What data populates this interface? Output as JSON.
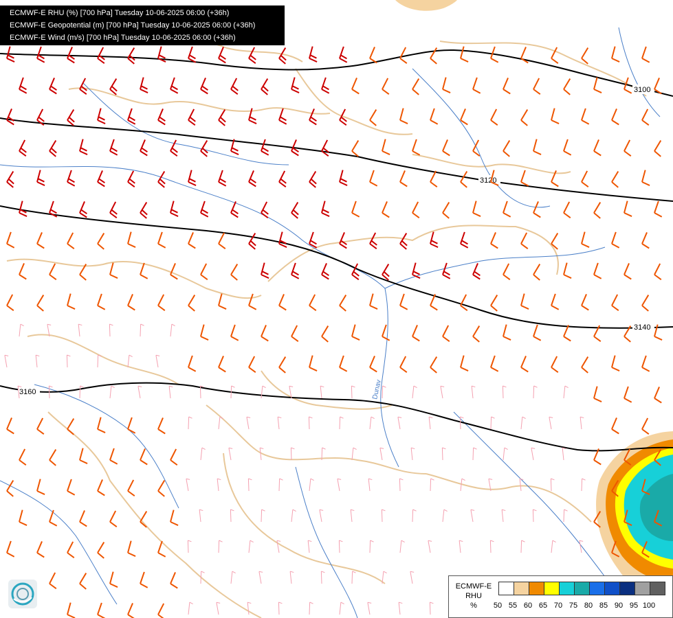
{
  "header": {
    "lines": [
      "ECMWF-E RHU (%) [700 hPa] Tuesday 10-06-2025 06:00 (+36h)",
      "ECMWF-E Geopotential (m) [700 hPa] Tuesday 10-06-2025 06:00 (+36h)",
      "ECMWF-E Wind (m/s) [700 hPa] Tuesday 10-06-2025 06:00 (+36h)"
    ]
  },
  "contours": [
    {
      "label": "3100"
    },
    {
      "label": "3120"
    },
    {
      "label": "3140"
    },
    {
      "label": "3160"
    }
  ],
  "map_label": "Dunav",
  "legend": {
    "title_line1": "ECMWF-E",
    "title_line2": "RHU",
    "unit": "%",
    "swatch_colors": [
      "#ffffff",
      "#f5d3a0",
      "#f08a00",
      "#ffff00",
      "#17d0d8",
      "#1aaaa8",
      "#1a6fe8",
      "#1050c8",
      "#0a2f80",
      "#a0a0a0",
      "#606060"
    ],
    "ticks": [
      "50",
      "55",
      "60",
      "65",
      "70",
      "75",
      "80",
      "85",
      "90",
      "95",
      "100"
    ]
  },
  "colors": {
    "barb_strong": "#cc0000",
    "barb_medium": "#ee5500",
    "barb_weak": "#f4a0b0",
    "contour": "#000000",
    "border": "#e8c89a",
    "river": "#4a7fc8"
  },
  "logo": {
    "icon": "ecmwf-logo-icon"
  }
}
